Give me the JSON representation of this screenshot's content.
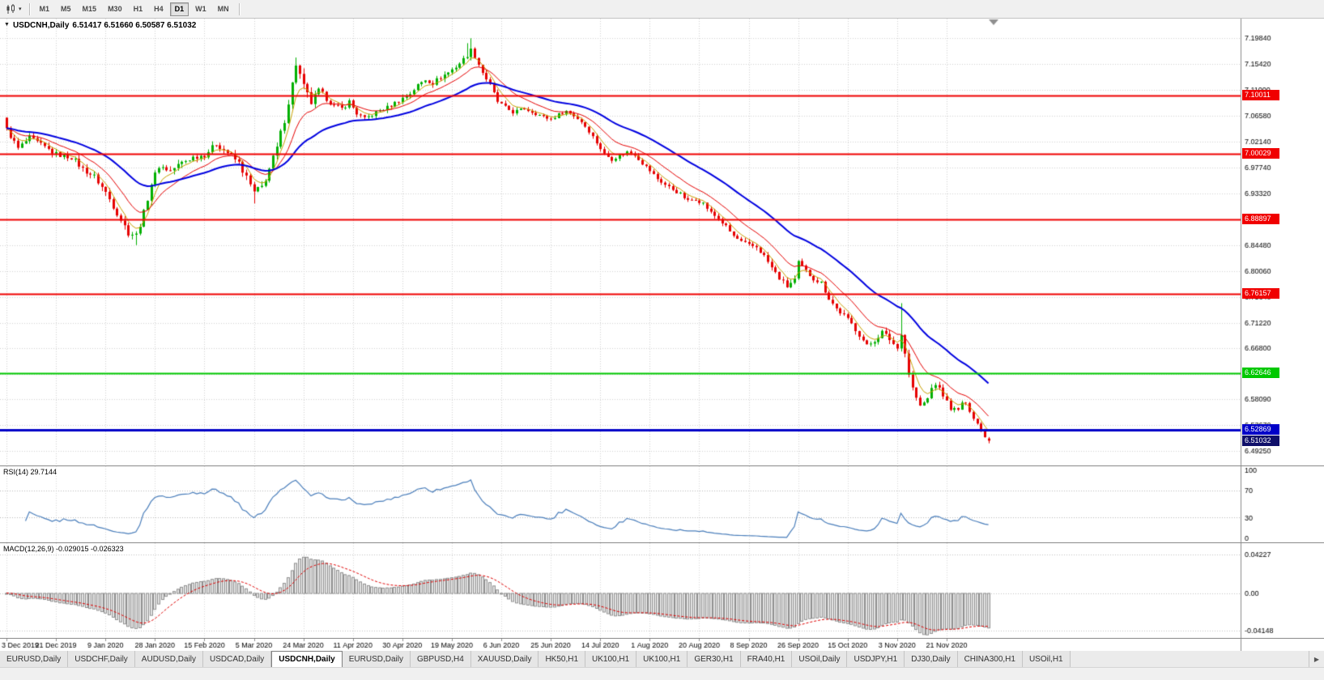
{
  "toolbar": {
    "periods": [
      {
        "label": "M1",
        "active": false
      },
      {
        "label": "M5",
        "active": false
      },
      {
        "label": "M15",
        "active": false
      },
      {
        "label": "M30",
        "active": false
      },
      {
        "label": "H1",
        "active": false
      },
      {
        "label": "H4",
        "active": false
      },
      {
        "label": "D1",
        "active": true
      },
      {
        "label": "W1",
        "active": false
      },
      {
        "label": "MN",
        "active": false
      }
    ]
  },
  "chart": {
    "title": {
      "collapse_icon": "▼",
      "symbol": "USDCNH,Daily",
      "ohlc": "6.51417 6.51660 6.50587 6.51032"
    }
  },
  "indicators": {
    "rsi": {
      "label": "RSI(14) 29.7144",
      "period": 14,
      "value": 29.7144,
      "axis": [
        {
          "value": 100,
          "label": "100"
        },
        {
          "value": 70,
          "label": "70"
        },
        {
          "value": 30,
          "label": "30"
        },
        {
          "value": 0,
          "label": "0"
        }
      ],
      "guide_levels": [
        70,
        30
      ],
      "line_color": "#4a7ebb"
    },
    "macd": {
      "label": "MACD(12,26,9) -0.029015 -0.026323",
      "values": [
        -0.029015,
        -0.026323
      ],
      "axis": [
        {
          "value": 0.04227,
          "label": "0.04227"
        },
        {
          "value": 0,
          "label": "0.00"
        },
        {
          "value": -0.04148,
          "label": "-0.04148"
        }
      ],
      "signal_color": "#e00000",
      "hist_fill": "#e4e4e4",
      "hist_stroke": "#8f8f8f"
    }
  },
  "date_axis": {
    "labels": [
      {
        "text": "3 Dec 2019",
        "bar": 0
      },
      {
        "text": "21 Dec 2019",
        "bar": 13
      },
      {
        "text": "9 Jan 2020",
        "bar": 26
      },
      {
        "text": "28 Jan 2020",
        "bar": 39
      },
      {
        "text": "15 Feb 2020",
        "bar": 52
      },
      {
        "text": "5 Mar 2020",
        "bar": 65
      },
      {
        "text": "24 Mar 2020",
        "bar": 78
      },
      {
        "text": "11 Apr 2020",
        "bar": 91
      },
      {
        "text": "30 Apr 2020",
        "bar": 104
      },
      {
        "text": "19 May 2020",
        "bar": 117
      },
      {
        "text": "6 Jun 2020",
        "bar": 130
      },
      {
        "text": "25 Jun 2020",
        "bar": 143
      },
      {
        "text": "14 Jul 2020",
        "bar": 156
      },
      {
        "text": "1 Aug 2020",
        "bar": 169
      },
      {
        "text": "20 Aug 2020",
        "bar": 182
      },
      {
        "text": "8 Sep 2020",
        "bar": 195
      },
      {
        "text": "26 Sep 2020",
        "bar": 208
      },
      {
        "text": "15 Oct 2020",
        "bar": 221
      },
      {
        "text": "3 Nov 2020",
        "bar": 234
      },
      {
        "text": "21 Nov 2020",
        "bar": 247
      }
    ]
  },
  "tabs": {
    "scroll_right_icon": "▶",
    "items": [
      {
        "label": "EURUSD,Daily",
        "active": false
      },
      {
        "label": "USDCHF,Daily",
        "active": false
      },
      {
        "label": "AUDUSD,Daily",
        "active": false
      },
      {
        "label": "USDCAD,Daily",
        "active": false
      },
      {
        "label": "USDCNH,Daily",
        "active": true
      },
      {
        "label": "EURUSD,Daily",
        "active": false
      },
      {
        "label": "GBPUSD,H4",
        "active": false
      },
      {
        "label": "XAUUSD,Daily",
        "active": false
      },
      {
        "label": "HK50,H1",
        "active": false
      },
      {
        "label": "UK100,H1",
        "active": false
      },
      {
        "label": "UK100,H1",
        "active": false
      },
      {
        "label": "GER30,H1",
        "active": false
      },
      {
        "label": "FRA40,H1",
        "active": false
      },
      {
        "label": "USOil,Daily",
        "active": false
      },
      {
        "label": "USDJPY,H1",
        "active": false
      },
      {
        "label": "DJ30,Daily",
        "active": false
      },
      {
        "label": "CHINA300,H1",
        "active": false
      },
      {
        "label": "USOil,H1",
        "active": false
      }
    ]
  },
  "chart_data": {
    "type": "candlestick",
    "title": "USDCNH,Daily",
    "bars": 259,
    "ylim": [
      6.468,
      7.232
    ],
    "up_color": "#00b000",
    "down_color": "#e60000",
    "price_ticks": [
      "7.19840",
      "7.15420",
      "7.11000",
      "7.06580",
      "7.02140",
      "6.97740",
      "6.93320",
      "6.88900",
      "6.84480",
      "6.80060",
      "6.75640",
      "6.71220",
      "6.66800",
      "6.62380",
      "6.58090",
      "6.53670",
      "6.49250"
    ],
    "hlines": [
      {
        "price": 7.10011,
        "label": "7.10011",
        "color": "#f00000",
        "width": 2
      },
      {
        "price": 7.00029,
        "label": "7.00029",
        "color": "#f00000",
        "width": 2
      },
      {
        "price": 6.88897,
        "label": "6.88897",
        "color": "#f00000",
        "width": 2
      },
      {
        "price": 6.76157,
        "label": "6.76157",
        "color": "#f00000",
        "width": 2
      },
      {
        "price": 6.62646,
        "label": "6.62646",
        "color": "#00c800",
        "width": 2
      },
      {
        "price": 6.52869,
        "label": "6.52869",
        "color": "#0000c8",
        "width": 3
      }
    ],
    "current_price": {
      "price": 6.51032,
      "label": "6.51032",
      "color": "#10106a"
    },
    "last_bar": {
      "open": 6.51417,
      "high": 6.5166,
      "low": 6.50587,
      "close": 6.51032
    },
    "moving_averages": [
      {
        "name": "fast",
        "period": 5,
        "color": "#c8a000",
        "width": 1
      },
      {
        "name": "mid",
        "period": 13,
        "color": "#e60000",
        "width": 1
      },
      {
        "name": "slow",
        "period": 34,
        "color": "#0000e0",
        "width": 2
      }
    ],
    "close_anchors": [
      [
        0,
        7.042
      ],
      [
        3,
        7.01
      ],
      [
        6,
        7.028
      ],
      [
        10,
        7.012
      ],
      [
        13,
        7.0
      ],
      [
        17,
        6.995
      ],
      [
        20,
        6.975
      ],
      [
        23,
        6.962
      ],
      [
        26,
        6.935
      ],
      [
        29,
        6.9
      ],
      [
        32,
        6.866
      ],
      [
        34,
        6.862
      ],
      [
        36,
        6.9
      ],
      [
        38,
        6.95
      ],
      [
        40,
        6.98
      ],
      [
        43,
        6.972
      ],
      [
        46,
        6.986
      ],
      [
        49,
        6.995
      ],
      [
        52,
        6.999
      ],
      [
        55,
        7.018
      ],
      [
        58,
        7.003
      ],
      [
        61,
        6.985
      ],
      [
        63,
        6.96
      ],
      [
        65,
        6.934
      ],
      [
        67,
        6.944
      ],
      [
        69,
        6.975
      ],
      [
        71,
        7.01
      ],
      [
        73,
        7.06
      ],
      [
        75,
        7.12
      ],
      [
        76,
        7.155
      ],
      [
        78,
        7.115
      ],
      [
        80,
        7.088
      ],
      [
        82,
        7.108
      ],
      [
        84,
        7.096
      ],
      [
        86,
        7.082
      ],
      [
        88,
        7.078
      ],
      [
        90,
        7.09
      ],
      [
        92,
        7.07
      ],
      [
        94,
        7.06
      ],
      [
        96,
        7.068
      ],
      [
        98,
        7.075
      ],
      [
        100,
        7.08
      ],
      [
        102,
        7.088
      ],
      [
        104,
        7.096
      ],
      [
        106,
        7.104
      ],
      [
        108,
        7.118
      ],
      [
        110,
        7.128
      ],
      [
        112,
        7.122
      ],
      [
        114,
        7.132
      ],
      [
        116,
        7.14
      ],
      [
        118,
        7.15
      ],
      [
        120,
        7.162
      ],
      [
        122,
        7.178
      ],
      [
        123,
        7.168
      ],
      [
        125,
        7.14
      ],
      [
        127,
        7.118
      ],
      [
        129,
        7.09
      ],
      [
        131,
        7.08
      ],
      [
        133,
        7.072
      ],
      [
        136,
        7.078
      ],
      [
        139,
        7.07
      ],
      [
        141,
        7.064
      ],
      [
        143,
        7.06
      ],
      [
        145,
        7.068
      ],
      [
        147,
        7.074
      ],
      [
        149,
        7.066
      ],
      [
        151,
        7.056
      ],
      [
        153,
        7.04
      ],
      [
        155,
        7.02
      ],
      [
        157,
        7.0
      ],
      [
        159,
        6.992
      ],
      [
        161,
        6.998
      ],
      [
        163,
        7.004
      ],
      [
        165,
        7.0
      ],
      [
        167,
        6.985
      ],
      [
        169,
        6.972
      ],
      [
        171,
        6.958
      ],
      [
        173,
        6.948
      ],
      [
        175,
        6.94
      ],
      [
        177,
        6.932
      ],
      [
        179,
        6.92
      ],
      [
        181,
        6.924
      ],
      [
        183,
        6.916
      ],
      [
        185,
        6.9
      ],
      [
        187,
        6.89
      ],
      [
        189,
        6.876
      ],
      [
        191,
        6.86
      ],
      [
        193,
        6.85
      ],
      [
        195,
        6.844
      ],
      [
        197,
        6.842
      ],
      [
        199,
        6.826
      ],
      [
        201,
        6.806
      ],
      [
        203,
        6.788
      ],
      [
        205,
        6.774
      ],
      [
        207,
        6.786
      ],
      [
        208,
        6.814
      ],
      [
        210,
        6.8
      ],
      [
        212,
        6.788
      ],
      [
        214,
        6.78
      ],
      [
        216,
        6.754
      ],
      [
        218,
        6.736
      ],
      [
        220,
        6.724
      ],
      [
        222,
        6.71
      ],
      [
        224,
        6.692
      ],
      [
        226,
        6.672
      ],
      [
        228,
        6.682
      ],
      [
        230,
        6.696
      ],
      [
        232,
        6.684
      ],
      [
        234,
        6.668
      ],
      [
        235,
        6.696
      ],
      [
        236,
        6.66
      ],
      [
        237,
        6.625
      ],
      [
        238,
        6.6
      ],
      [
        240,
        6.568
      ],
      [
        242,
        6.582
      ],
      [
        243,
        6.6
      ],
      [
        244,
        6.608
      ],
      [
        246,
        6.588
      ],
      [
        248,
        6.566
      ],
      [
        250,
        6.562
      ],
      [
        251,
        6.576
      ],
      [
        252,
        6.572
      ],
      [
        253,
        6.562
      ],
      [
        254,
        6.55
      ],
      [
        255,
        6.54
      ],
      [
        256,
        6.528
      ],
      [
        257,
        6.518
      ],
      [
        258,
        6.5103
      ]
    ],
    "vol_anchors": [
      [
        0,
        0.012
      ],
      [
        20,
        0.013
      ],
      [
        30,
        0.015
      ],
      [
        40,
        0.014
      ],
      [
        55,
        0.012
      ],
      [
        65,
        0.018
      ],
      [
        76,
        0.02
      ],
      [
        85,
        0.013
      ],
      [
        100,
        0.01
      ],
      [
        120,
        0.012
      ],
      [
        130,
        0.009
      ],
      [
        145,
        0.008
      ],
      [
        160,
        0.009
      ],
      [
        180,
        0.009
      ],
      [
        200,
        0.011
      ],
      [
        215,
        0.012
      ],
      [
        230,
        0.012
      ],
      [
        237,
        0.016
      ],
      [
        245,
        0.011
      ],
      [
        252,
        0.008
      ],
      [
        258,
        0.005
      ]
    ],
    "spikes": [
      {
        "i": 34,
        "low": 6.8448
      },
      {
        "i": 65,
        "low": 6.916
      },
      {
        "i": 76,
        "high": 7.1655
      },
      {
        "i": 121,
        "high": 7.19
      },
      {
        "i": 122,
        "high": 7.1984
      },
      {
        "i": 235,
        "high": 6.7455
      }
    ]
  }
}
